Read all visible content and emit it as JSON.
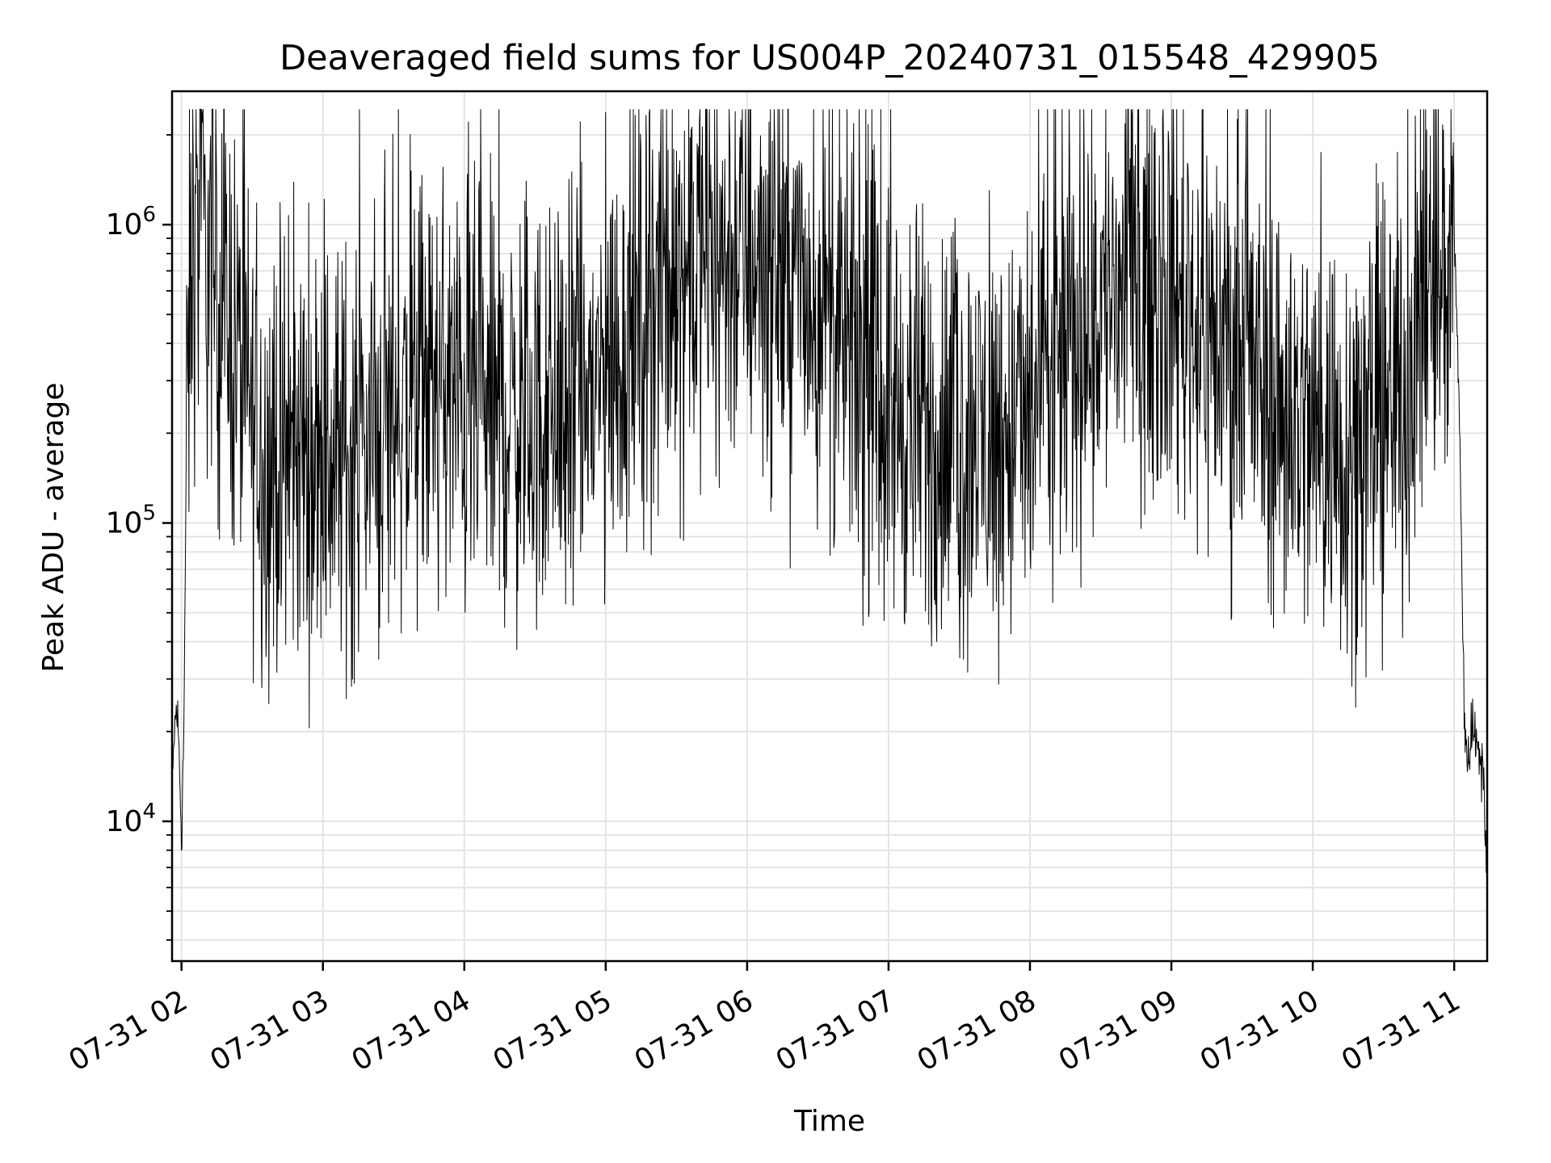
{
  "chart_data": {
    "type": "line",
    "title": "Deaveraged field sums for US004P_20240731_015548_429905",
    "xlabel": "Time",
    "ylabel": "Peak ADU - average",
    "yscale": "log",
    "ylim": [
      3400,
      2800000
    ],
    "xlim": [
      "2024-07-31 01:56",
      "2024-07-31 11:14"
    ],
    "grid": true,
    "line_color": "#000000",
    "x_ticks": [
      {
        "value": "2024-07-31 02:00",
        "label": "07-31 02"
      },
      {
        "value": "2024-07-31 03:00",
        "label": "07-31 03"
      },
      {
        "value": "2024-07-31 04:00",
        "label": "07-31 04"
      },
      {
        "value": "2024-07-31 05:00",
        "label": "07-31 05"
      },
      {
        "value": "2024-07-31 06:00",
        "label": "07-31 06"
      },
      {
        "value": "2024-07-31 07:00",
        "label": "07-31 07"
      },
      {
        "value": "2024-07-31 08:00",
        "label": "07-31 08"
      },
      {
        "value": "2024-07-31 09:00",
        "label": "07-31 09"
      },
      {
        "value": "2024-07-31 10:00",
        "label": "07-31 10"
      },
      {
        "value": "2024-07-31 11:00",
        "label": "07-31 11"
      }
    ],
    "y_ticks": [
      {
        "value": 10000,
        "base": "10",
        "exp": "4"
      },
      {
        "value": 100000,
        "base": "10",
        "exp": "5"
      },
      {
        "value": 1000000,
        "base": "10",
        "exp": "6"
      }
    ],
    "series": [
      {
        "x": [
          "2024-07-31 01:56",
          "2024-07-31 01:57",
          "2024-07-31 01:58",
          "2024-07-31 01:59",
          "2024-07-31 02:00",
          "2024-07-31 02:01",
          "2024-07-31 02:02",
          "2024-07-31 02:04",
          "2024-07-31 02:06",
          "2024-07-31 02:08",
          "2024-07-31 02:10",
          "2024-07-31 02:14",
          "2024-07-31 02:18",
          "2024-07-31 02:22",
          "2024-07-31 02:26",
          "2024-07-31 02:30",
          "2024-07-31 02:34",
          "2024-07-31 02:38",
          "2024-07-31 02:42",
          "2024-07-31 02:46",
          "2024-07-31 02:52",
          "2024-07-31 03:00",
          "2024-07-31 03:10",
          "2024-07-31 03:20",
          "2024-07-31 03:30",
          "2024-07-31 03:40",
          "2024-07-31 03:50",
          "2024-07-31 04:00",
          "2024-07-31 04:15",
          "2024-07-31 04:30",
          "2024-07-31 04:45",
          "2024-07-31 05:00",
          "2024-07-31 05:15",
          "2024-07-31 05:30",
          "2024-07-31 05:45",
          "2024-07-31 06:00",
          "2024-07-31 06:15",
          "2024-07-31 06:30",
          "2024-07-31 06:45",
          "2024-07-31 07:00",
          "2024-07-31 07:15",
          "2024-07-31 07:30",
          "2024-07-31 07:45",
          "2024-07-31 08:00",
          "2024-07-31 08:15",
          "2024-07-31 08:30",
          "2024-07-31 08:45",
          "2024-07-31 09:00",
          "2024-07-31 09:15",
          "2024-07-31 09:30",
          "2024-07-31 09:45",
          "2024-07-31 10:00",
          "2024-07-31 10:15",
          "2024-07-31 10:30",
          "2024-07-31 10:40",
          "2024-07-31 10:45",
          "2024-07-31 10:50",
          "2024-07-31 10:55",
          "2024-07-31 10:58",
          "2024-07-31 11:00",
          "2024-07-31 11:02",
          "2024-07-31 11:04",
          "2024-07-31 11:05",
          "2024-07-31 11:06",
          "2024-07-31 11:08",
          "2024-07-31 11:10",
          "2024-07-31 11:12",
          "2024-07-31 11:14"
        ],
        "y": [
          11000,
          20000,
          24000,
          17000,
          9000,
          20000,
          150000,
          700000,
          900000,
          1100000,
          800000,
          650000,
          550000,
          420000,
          300000,
          220000,
          170000,
          150000,
          160000,
          160000,
          180000,
          160000,
          170000,
          190000,
          230000,
          260000,
          280000,
          250000,
          230000,
          220000,
          240000,
          300000,
          500000,
          700000,
          750000,
          800000,
          700000,
          500000,
          350000,
          250000,
          200000,
          180000,
          190000,
          220000,
          350000,
          550000,
          650000,
          600000,
          450000,
          330000,
          250000,
          200000,
          180000,
          220000,
          300000,
          450000,
          550000,
          650000,
          750000,
          900000,
          300000,
          30000,
          15000,
          18000,
          20000,
          19000,
          16000,
          7000
        ]
      }
    ]
  }
}
